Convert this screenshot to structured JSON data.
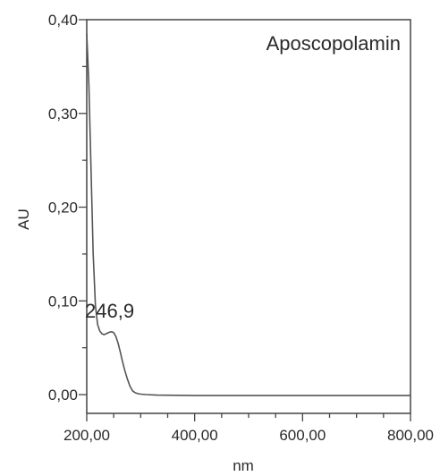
{
  "chart_data": {
    "type": "line",
    "title": "Aposcopolamin",
    "xlabel": "nm",
    "ylabel": "AU",
    "xlim": [
      200,
      800
    ],
    "ylim": [
      -0.02,
      0.4
    ],
    "x_ticks": [
      {
        "value": 200,
        "label": "200,00"
      },
      {
        "value": 400,
        "label": "400,00"
      },
      {
        "value": 600,
        "label": "600,00"
      },
      {
        "value": 800,
        "label": "800,00"
      }
    ],
    "y_ticks": [
      {
        "value": 0.0,
        "label": "0,00"
      },
      {
        "value": 0.1,
        "label": "0,10"
      },
      {
        "value": 0.2,
        "label": "0,20"
      },
      {
        "value": 0.3,
        "label": "0,30"
      },
      {
        "value": 0.4,
        "label": "0,40"
      }
    ],
    "grid": false,
    "series": [
      {
        "color": "#555555",
        "x": [
          200,
          204,
          208,
          212,
          216,
          220,
          224,
          228,
          232,
          236,
          240,
          244,
          246.9,
          250,
          254,
          258,
          262,
          266,
          270,
          275,
          280,
          285,
          290,
          295,
          300,
          310,
          330,
          400,
          500,
          600,
          700,
          800
        ],
        "y": [
          0.385,
          0.33,
          0.24,
          0.15,
          0.095,
          0.075,
          0.068,
          0.065,
          0.064,
          0.065,
          0.066,
          0.067,
          0.067,
          0.066,
          0.062,
          0.055,
          0.046,
          0.036,
          0.027,
          0.017,
          0.009,
          0.004,
          0.002,
          0.001,
          0.0005,
          0.0,
          -0.0005,
          -0.001,
          -0.001,
          -0.001,
          -0.001,
          -0.001
        ]
      }
    ],
    "annotations": [
      {
        "text": "246,9",
        "x": 246.9,
        "y": 0.085
      }
    ]
  }
}
